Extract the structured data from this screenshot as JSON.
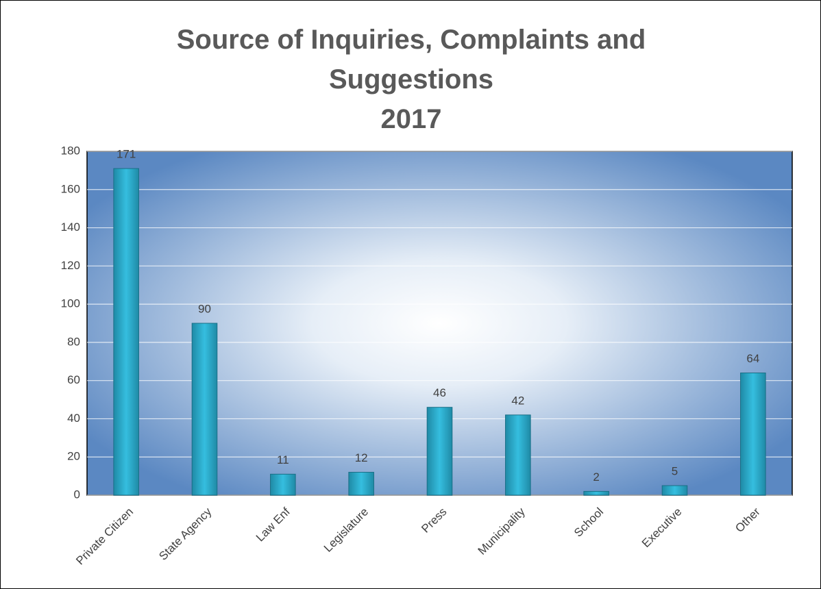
{
  "chart_data": {
    "type": "bar",
    "title": "Source of Inquiries, Complaints and Suggestions",
    "subtitle": "2017",
    "categories": [
      "Private Citizen",
      "State Agency",
      "Law Enf",
      "Legislature",
      "Press",
      "Municipality",
      "School",
      "Executive",
      "Other"
    ],
    "values": [
      171,
      90,
      11,
      12,
      46,
      42,
      2,
      5,
      64
    ],
    "color": "#31b5d6",
    "ylim": [
      0,
      180
    ],
    "yticks": [
      0,
      20,
      40,
      60,
      80,
      100,
      120,
      140,
      160,
      180
    ],
    "grid": true
  }
}
